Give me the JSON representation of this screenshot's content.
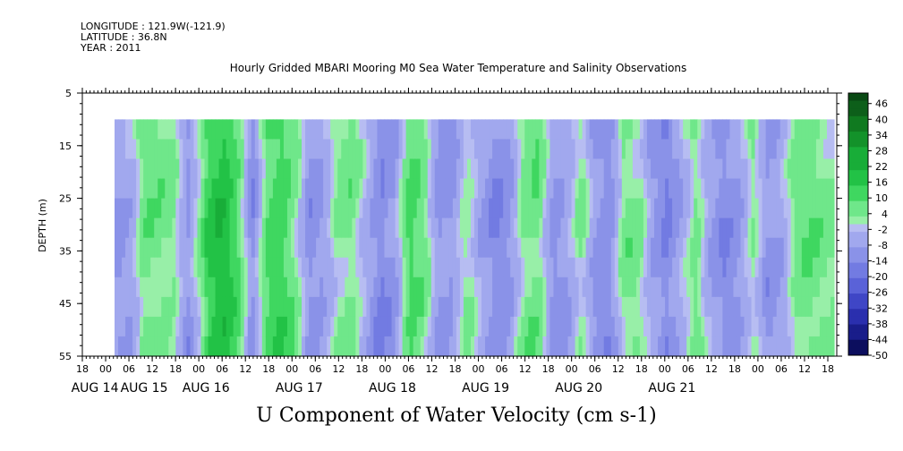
{
  "header": {
    "longitude": "LONGITUDE : 121.9W(-121.9)",
    "latitude": "LATITUDE : 36.8N",
    "year": "YEAR : 2011"
  },
  "chart_data": {
    "type": "heatmap",
    "title": "Hourly Gridded MBARI Mooring M0 Sea Water Temperature and Salinity Observations",
    "xlabel": "U Component of Water Velocity (cm s-1)",
    "ylabel": "DEPTH (m)",
    "y_ticks": [
      5,
      15,
      25,
      35,
      45,
      55
    ],
    "y_range": [
      5,
      55
    ],
    "y_inverted": true,
    "data_depth_range": [
      10,
      55
    ],
    "x_range_hours": [
      "AUG 14 18:00",
      "AUG 21 20:00"
    ],
    "x_hour_ticks": [
      "18",
      "00",
      "06",
      "12",
      "18",
      "00",
      "06",
      "12",
      "18",
      "00",
      "06",
      "12",
      "18",
      "00",
      "06",
      "12",
      "18",
      "00",
      "06",
      "12",
      "18",
      "00",
      "06",
      "12",
      "18",
      "00",
      "06",
      "12",
      "18",
      "00",
      "06",
      "12",
      "18"
    ],
    "x_date_labels": [
      "AUG 14",
      "AUG 15",
      "AUG 16",
      "AUG 17",
      "AUG 18",
      "AUG 19",
      "AUG 20",
      "AUG 21"
    ],
    "colorbar": {
      "labels": [
        "46",
        "40",
        "34",
        "28",
        "22",
        "16",
        "10",
        "4",
        "-2",
        "-8",
        "-14",
        "-20",
        "-26",
        "-32",
        "-38",
        "-44",
        "-50"
      ],
      "min": -50,
      "max": 50,
      "step": 3
    },
    "approx_columns": [
      {
        "t": 0.0,
        "v": -8
      },
      {
        "t": 0.02,
        "v": -6
      },
      {
        "t": 0.04,
        "v": 8
      },
      {
        "t": 0.06,
        "v": 6
      },
      {
        "t": 0.08,
        "v": 4
      },
      {
        "t": 0.1,
        "v": -10
      },
      {
        "t": 0.12,
        "v": 6
      },
      {
        "t": 0.13,
        "v": 16
      },
      {
        "t": 0.15,
        "v": 20
      },
      {
        "t": 0.17,
        "v": 10
      },
      {
        "t": 0.19,
        "v": -12
      },
      {
        "t": 0.21,
        "v": 10
      },
      {
        "t": 0.23,
        "v": 14
      },
      {
        "t": 0.25,
        "v": 6
      },
      {
        "t": 0.27,
        "v": -10
      },
      {
        "t": 0.29,
        "v": -6
      },
      {
        "t": 0.31,
        "v": 4
      },
      {
        "t": 0.33,
        "v": 6
      },
      {
        "t": 0.35,
        "v": -4
      },
      {
        "t": 0.37,
        "v": -14
      },
      {
        "t": 0.39,
        "v": -8
      },
      {
        "t": 0.41,
        "v": 12
      },
      {
        "t": 0.43,
        "v": 6
      },
      {
        "t": 0.45,
        "v": -10
      },
      {
        "t": 0.47,
        "v": -8
      },
      {
        "t": 0.49,
        "v": 4
      },
      {
        "t": 0.51,
        "v": -6
      },
      {
        "t": 0.53,
        "v": -12
      },
      {
        "t": 0.55,
        "v": -8
      },
      {
        "t": 0.57,
        "v": 6
      },
      {
        "t": 0.59,
        "v": 8
      },
      {
        "t": 0.61,
        "v": -10
      },
      {
        "t": 0.63,
        "v": -6
      },
      {
        "t": 0.65,
        "v": 4
      },
      {
        "t": 0.67,
        "v": -10
      },
      {
        "t": 0.69,
        "v": -12
      },
      {
        "t": 0.71,
        "v": 6
      },
      {
        "t": 0.73,
        "v": 4
      },
      {
        "t": 0.75,
        "v": -8
      },
      {
        "t": 0.77,
        "v": -14
      },
      {
        "t": 0.79,
        "v": -4
      },
      {
        "t": 0.81,
        "v": 6
      },
      {
        "t": 0.83,
        "v": -6
      },
      {
        "t": 0.85,
        "v": -12
      },
      {
        "t": 0.87,
        "v": -8
      },
      {
        "t": 0.89,
        "v": 4
      },
      {
        "t": 0.91,
        "v": -10
      },
      {
        "t": 0.93,
        "v": -6
      },
      {
        "t": 0.95,
        "v": 6
      },
      {
        "t": 0.97,
        "v": 8
      },
      {
        "t": 1.0,
        "v": 4
      }
    ]
  }
}
